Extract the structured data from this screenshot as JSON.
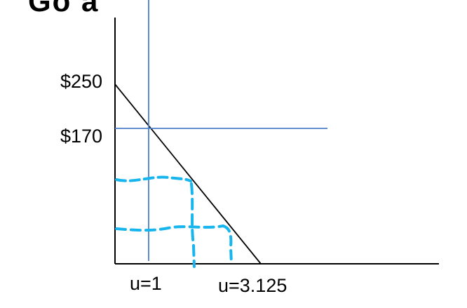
{
  "title_fragment": "Go a",
  "y_ticks": [
    "$250",
    "$170"
  ],
  "x_ticks": [
    "u=1",
    "u=3.125"
  ],
  "colors": {
    "axis": "#000000",
    "demand_line": "#000000",
    "guide_lines": "#4a7ec8",
    "dashed_sketch": "#17b5ee"
  }
}
